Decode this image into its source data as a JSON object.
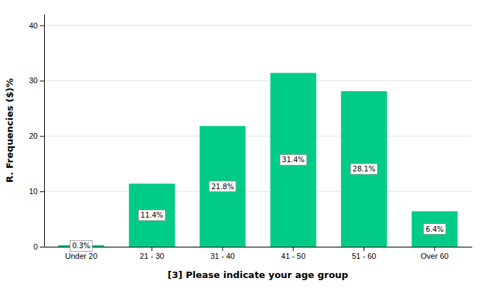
{
  "chart_data": {
    "type": "bar",
    "xlabel": "[3] Please indicate your age group",
    "ylabel": "R. Frequencies ($)%",
    "categories": [
      "Under 20",
      "21 - 30",
      "31 - 40",
      "41 - 50",
      "51 - 60",
      "Over 60"
    ],
    "values": [
      0.3,
      11.4,
      21.8,
      31.4,
      28.1,
      6.4
    ],
    "value_labels": [
      "0.3%",
      "11.4%",
      "21.8%",
      "31.4%",
      "28.1%",
      "6.4%"
    ],
    "data_labels": true,
    "color": "#00cc88",
    "ylim": [
      0,
      42
    ],
    "yticks": [
      0,
      10,
      20,
      30,
      40
    ],
    "grid": true
  }
}
